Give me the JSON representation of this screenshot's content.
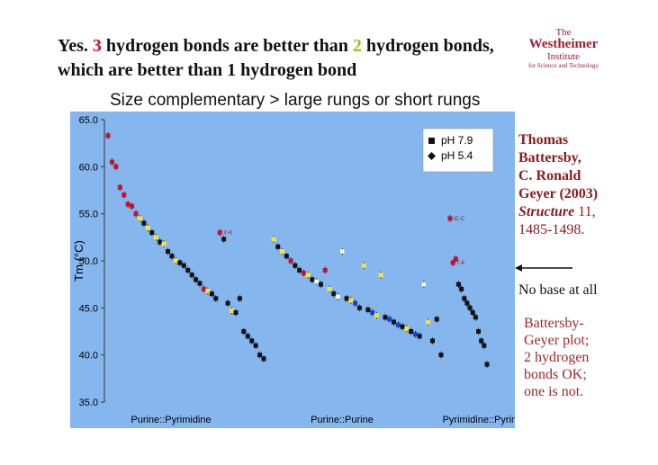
{
  "header": {
    "title_parts": [
      "Yes. ",
      "3",
      " hydrogen bonds are better than ",
      "2",
      " hydrogen bonds, which are better than 1 hydrogen bond"
    ],
    "subtitle": "Size complementary > large rungs or short rungs"
  },
  "logo": {
    "lines": [
      "The",
      "Westheimer",
      "Institute",
      "for Science and Technology"
    ]
  },
  "reference": {
    "lines": [
      "Thomas",
      "Battersby,",
      "C. Ronald",
      "Geyer (2003)"
    ],
    "journal": "Structure",
    "volume": "11,",
    "pages": "1485-1498."
  },
  "arrow_note": "No base at all",
  "conclusion": [
    "Battersby-",
    "Geyer plot;",
    "2 hydrogen",
    "bonds OK;",
    "one is not."
  ],
  "chart_data": {
    "type": "scatter",
    "ylabel": "Tm (°C)",
    "background": "#86b6ee",
    "ylim": [
      35,
      65
    ],
    "yticks": [
      {
        "value": 35,
        "label": "35.0"
      },
      {
        "value": 40,
        "label": "40.0"
      },
      {
        "value": 45,
        "label": "45.0"
      },
      {
        "value": 50,
        "label": "50.0"
      },
      {
        "value": 55,
        "label": "55.0"
      },
      {
        "value": 60,
        "label": "60.0"
      },
      {
        "value": 65,
        "label": "65.0"
      }
    ],
    "legend": [
      {
        "name": "pH 7.9",
        "color": "#111111"
      },
      {
        "name": "pH 5.4",
        "color": "#111111"
      }
    ],
    "groups": [
      {
        "label": "Purine::Pyrimidine",
        "values": [
          63.3,
          60.5,
          60.0,
          57.8,
          57.0,
          56.0,
          55.8,
          55.0,
          54.5,
          54.0,
          53.5,
          53.0,
          52.5,
          52.0,
          51.8,
          51.0,
          50.5,
          50.0,
          49.8,
          49.5,
          49.0,
          48.5,
          48.0,
          47.6,
          47.0,
          46.8,
          46.5,
          46.0,
          53.0,
          52.3,
          45.5,
          44.7,
          44.5,
          46.0,
          42.5,
          42.0,
          41.5,
          41.0,
          40.0,
          39.6
        ],
        "colors": [
          "#c8102e",
          "#c8102e",
          "#c8102e",
          "#c8102e",
          "#c8102e",
          "#c8102e",
          "#c8102e",
          "#c8102e",
          "#f5e33a",
          "#111111",
          "#f5e33a",
          "#111111",
          "#f5e33a",
          "#111111",
          "#f5e33a",
          "#111111",
          "#111111",
          "#f5e33a",
          "#111111",
          "#111111",
          "#111111",
          "#111111",
          "#111111",
          "#111111",
          "#c8102e",
          "#f5e33a",
          "#111111",
          "#111111",
          "#c8102e",
          "#111111",
          "#111111",
          "#f5e33a",
          "#111111",
          "#111111",
          "#111111",
          "#111111",
          "#111111",
          "#111111",
          "#111111",
          "#111111"
        ],
        "point_labels": [
          null,
          null,
          null,
          null,
          null,
          null,
          null,
          null,
          null,
          null,
          null,
          null,
          null,
          null,
          null,
          null,
          null,
          null,
          null,
          null,
          null,
          null,
          null,
          null,
          null,
          null,
          null,
          null,
          "X-K",
          null,
          null,
          null,
          null,
          null,
          null,
          null,
          null,
          null,
          null,
          null
        ]
      },
      {
        "label": "Purine::Purine",
        "values": [
          52.3,
          51.5,
          51.0,
          50.5,
          50.0,
          49.5,
          49.0,
          48.7,
          48.5,
          48.0,
          47.8,
          47.5,
          49.0,
          47.0,
          46.5,
          46.2,
          51.0,
          46.0,
          45.8,
          45.5,
          45.0,
          49.5,
          44.8,
          44.5,
          44.2,
          48.5,
          44.0,
          43.8,
          43.5,
          43.2,
          43.0,
          42.8,
          42.5,
          42.2,
          42.0,
          47.5,
          43.5,
          41.5,
          43.8,
          40.0
        ],
        "colors": [
          "#f5e33a",
          "#111111",
          "#f5e33a",
          "#111111",
          "#c8102e",
          "#111111",
          "#111111",
          "#c8102e",
          "#f5e33a",
          "#111111",
          "#ffffff",
          "#111111",
          "#c8102e",
          "#f5e33a",
          "#111111",
          "#ffffff",
          "#ffffff",
          "#111111",
          "#f5e33a",
          "#1f3fd0",
          "#111111",
          "#f5e33a",
          "#111111",
          "#1f3fd0",
          "#f5e33a",
          "#f5e33a",
          "#111111",
          "#1f3fd0",
          "#111111",
          "#1f3fd0",
          "#111111",
          "#f5e33a",
          "#111111",
          "#1f3fd0",
          "#111111",
          "#ffffff",
          "#f5e33a",
          "#111111",
          "#111111",
          "#111111"
        ],
        "point_labels": null
      },
      {
        "label": "Pyrimidine::Pyrimidine",
        "values": [
          54.5,
          49.8,
          50.2,
          47.5,
          47.0,
          46.0,
          45.5,
          45.0,
          44.5,
          44.0,
          42.5,
          41.5,
          41.0,
          39.0
        ],
        "colors": [
          "#c8102e",
          "#c8102e",
          "#c8102e",
          "#111111",
          "#111111",
          "#111111",
          "#111111",
          "#111111",
          "#111111",
          "#111111",
          "#111111",
          "#111111",
          "#111111",
          "#111111"
        ],
        "point_labels": [
          "IC-C",
          "T-K",
          null,
          null,
          null,
          null,
          null,
          null,
          null,
          null,
          null,
          null,
          null,
          null
        ]
      }
    ]
  }
}
